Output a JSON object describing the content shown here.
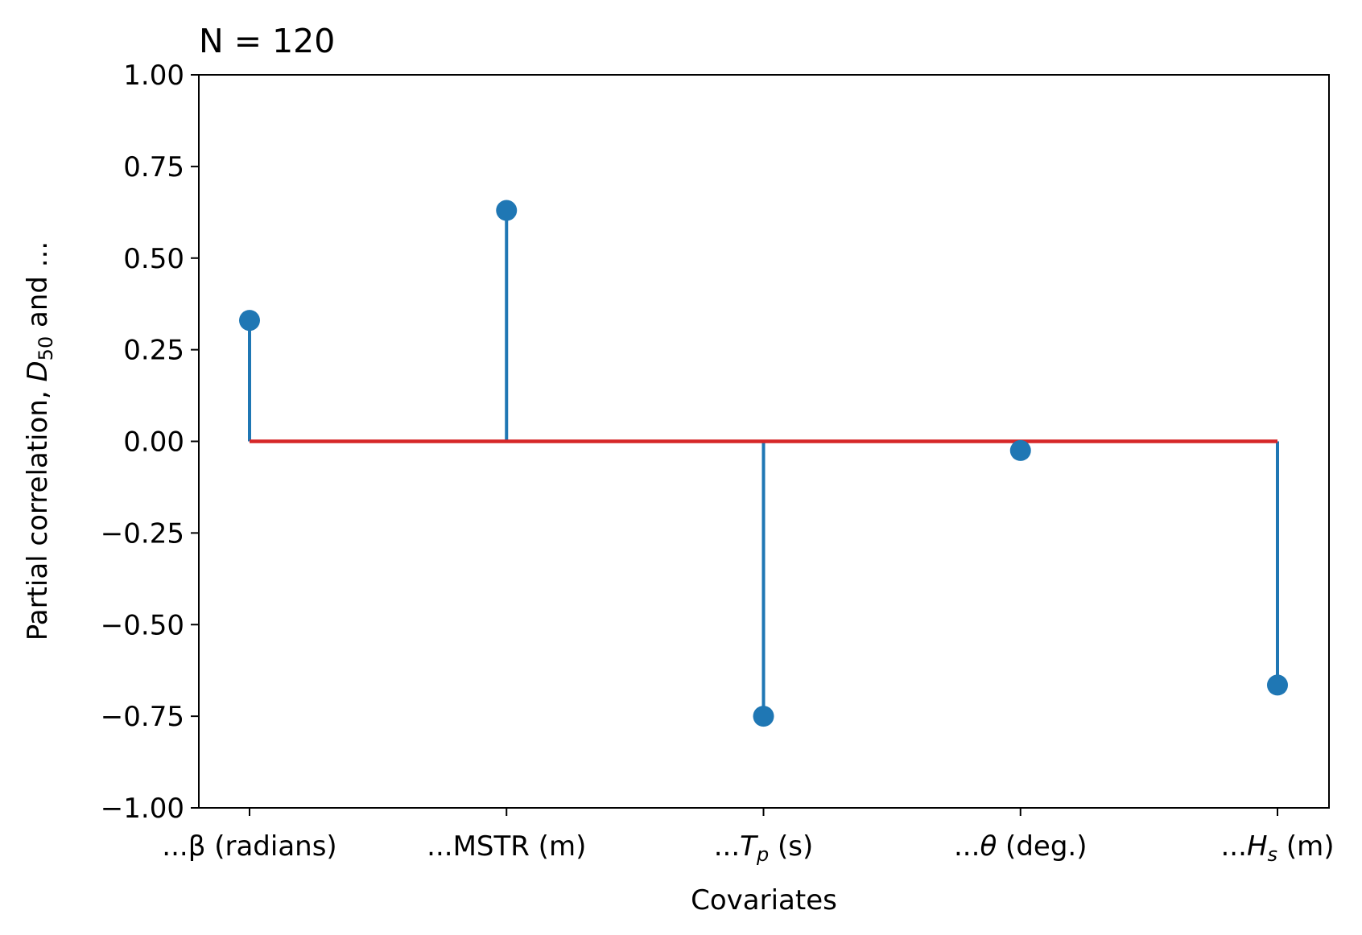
{
  "chart_data": {
    "type": "stem",
    "title": "N = 120",
    "xlabel": "Covariates",
    "ylabel": {
      "prefix": "Partial correlation, ",
      "var": "D",
      "sub": "50",
      "suffix": " and ..."
    },
    "categories": [
      {
        "parts": [
          {
            "text": "...β (radians)"
          }
        ]
      },
      {
        "parts": [
          {
            "text": "...MSTR (m)"
          }
        ]
      },
      {
        "parts": [
          {
            "text": "..."
          },
          {
            "text": "T",
            "italic": true
          },
          {
            "text": "p",
            "italic": true,
            "sub": true
          },
          {
            "text": " (s)"
          }
        ]
      },
      {
        "parts": [
          {
            "text": "..."
          },
          {
            "text": "θ",
            "italic": true
          },
          {
            "text": " (deg.)"
          }
        ]
      },
      {
        "parts": [
          {
            "text": "..."
          },
          {
            "text": "H",
            "italic": true
          },
          {
            "text": "s",
            "italic": true,
            "sub": true
          },
          {
            "text": " (m)"
          }
        ]
      }
    ],
    "values": [
      0.33,
      0.63,
      -0.75,
      -0.025,
      -0.665
    ],
    "ylim": [
      -1.0,
      1.0
    ],
    "yticks": [
      -1.0,
      -0.75,
      -0.5,
      -0.25,
      0.0,
      0.25,
      0.5,
      0.75,
      1.0
    ],
    "ytick_labels": [
      "−1.00",
      "−0.75",
      "−0.50",
      "−0.25",
      "0.00",
      "0.25",
      "0.50",
      "0.75",
      "1.00"
    ],
    "baseline": 0.0,
    "grid": false,
    "colors": {
      "stem": "#1f77b4",
      "baseline": "#d62728",
      "axes": "#000000"
    }
  }
}
